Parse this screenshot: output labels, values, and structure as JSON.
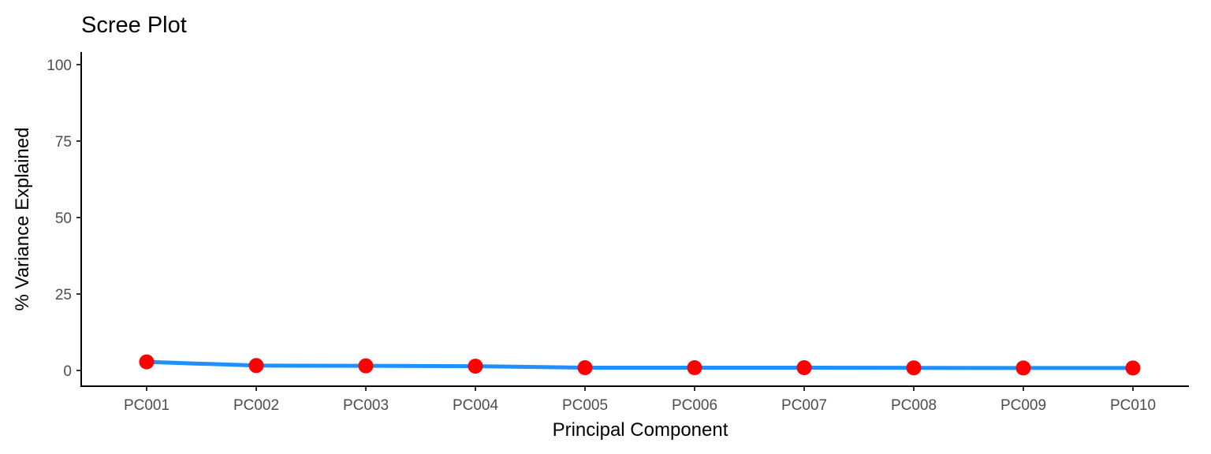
{
  "chart_data": {
    "type": "line",
    "title": "Scree Plot",
    "xlabel": "Principal Component",
    "ylabel": "% Variance Explained",
    "categories": [
      "PC001",
      "PC002",
      "PC003",
      "PC004",
      "PC005",
      "PC006",
      "PC007",
      "PC008",
      "PC009",
      "PC010"
    ],
    "values": [
      2.8,
      1.6,
      1.5,
      1.4,
      0.9,
      0.9,
      0.9,
      0.85,
      0.8,
      0.8
    ],
    "ylim": [
      0,
      100
    ],
    "yticks": [
      0,
      25,
      50,
      75,
      100
    ],
    "grid": false,
    "line_color": "#1E90FF",
    "point_color": "#FF0000"
  }
}
